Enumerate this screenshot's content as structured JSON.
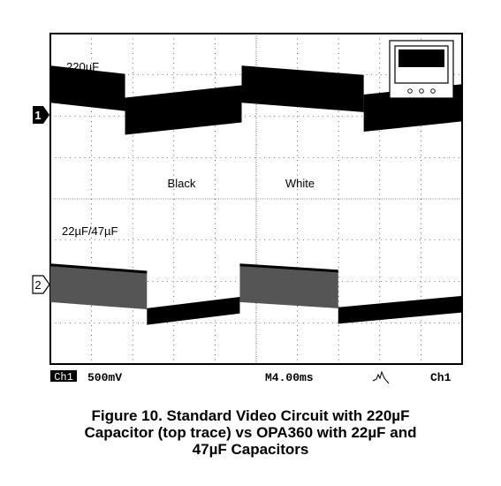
{
  "chart_data": {
    "type": "line",
    "title": "",
    "channels": [
      {
        "marker": "1",
        "label": "220µF",
        "description": "top trace",
        "segments": [
          {
            "x": [
              0,
              4.1
            ],
            "y": [
              2.45,
              2.05
            ]
          },
          {
            "x": [
              4.1,
              10.5
            ],
            "y": [
              0.9,
              1.5
            ]
          },
          {
            "x": [
              10.5,
              17.2
            ],
            "y": [
              2.45,
              2.0
            ]
          },
          {
            "x": [
              17.2,
              22.6
            ],
            "y": [
              1.05,
              1.55
            ]
          }
        ],
        "annotations": [
          {
            "text": "Black",
            "x": 7.2
          },
          {
            "text": "White",
            "x": 13.7
          }
        ]
      },
      {
        "marker": "2",
        "label": "22µF/47µF",
        "segments": [
          {
            "x": [
              0,
              5.3
            ],
            "y": [
              0.8,
              0.45
            ]
          },
          {
            "x": [
              5.3,
              10.4
            ],
            "y": [
              -1.3,
              -0.75
            ]
          },
          {
            "x": [
              10.4,
              15.8
            ],
            "y": [
              0.8,
              0.5
            ]
          },
          {
            "x": [
              15.8,
              22.6
            ],
            "y": [
              -1.25,
              -0.7
            ]
          }
        ]
      }
    ],
    "status": {
      "channel_box": "Ch1",
      "volts_per_div": "500mV",
      "time_per_div": "M4.00ms",
      "trigger_source": "Ch1"
    }
  },
  "caption": {
    "line1": "Figure 10. Standard Video Circuit with 220µF",
    "line2": "Capacitor (top trace) vs OPA360 with 22µF and",
    "line3": "47µF Capacitors"
  }
}
